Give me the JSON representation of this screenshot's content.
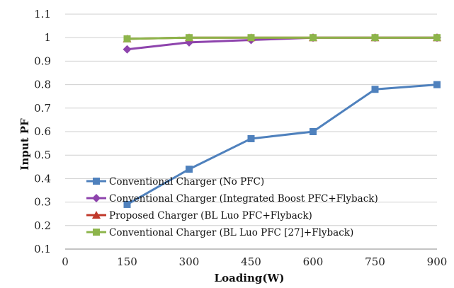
{
  "chart_data": {
    "type": "line",
    "title": "",
    "xlabel": "Loading(W)",
    "ylabel": "Input PF",
    "xlim": [
      0,
      900
    ],
    "ylim": [
      0.1,
      1.1
    ],
    "x_ticks": [
      "0",
      "150",
      "300",
      "450",
      "600",
      "750",
      "900"
    ],
    "y_ticks": [
      "0.1",
      "0.2",
      "0.3",
      "0.4",
      "0.5",
      "0.6",
      "0.7",
      "0.8",
      "0.9",
      "1",
      "1.1"
    ],
    "grid": "horizontal",
    "legend_position": "bottom",
    "x": [
      150,
      300,
      450,
      600,
      750,
      900
    ],
    "series": [
      {
        "name": "Conventional Charger (No PFC)",
        "values": [
          0.29,
          0.44,
          0.57,
          0.6,
          0.78,
          0.8
        ],
        "color": "#4f81bd",
        "marker": "square"
      },
      {
        "name": "Conventional Charger (Integrated Boost PFC+Flyback)",
        "values": [
          0.95,
          0.98,
          0.99,
          1.0,
          1.0,
          1.0
        ],
        "color": "#8e44ad",
        "marker": "diamond"
      },
      {
        "name": "Proposed Charger (BL Luo PFC+Flyback)",
        "values": [
          0.995,
          1.0,
          1.0,
          1.0,
          1.0,
          1.0
        ],
        "color": "#c0392b",
        "marker": "triangle"
      },
      {
        "name": "Conventional Charger (BL Luo PFC [27]+Flyback)",
        "values": [
          0.995,
          1.0,
          1.0,
          1.0,
          1.0,
          1.0
        ],
        "color": "#8db54b",
        "marker": "square"
      }
    ]
  }
}
